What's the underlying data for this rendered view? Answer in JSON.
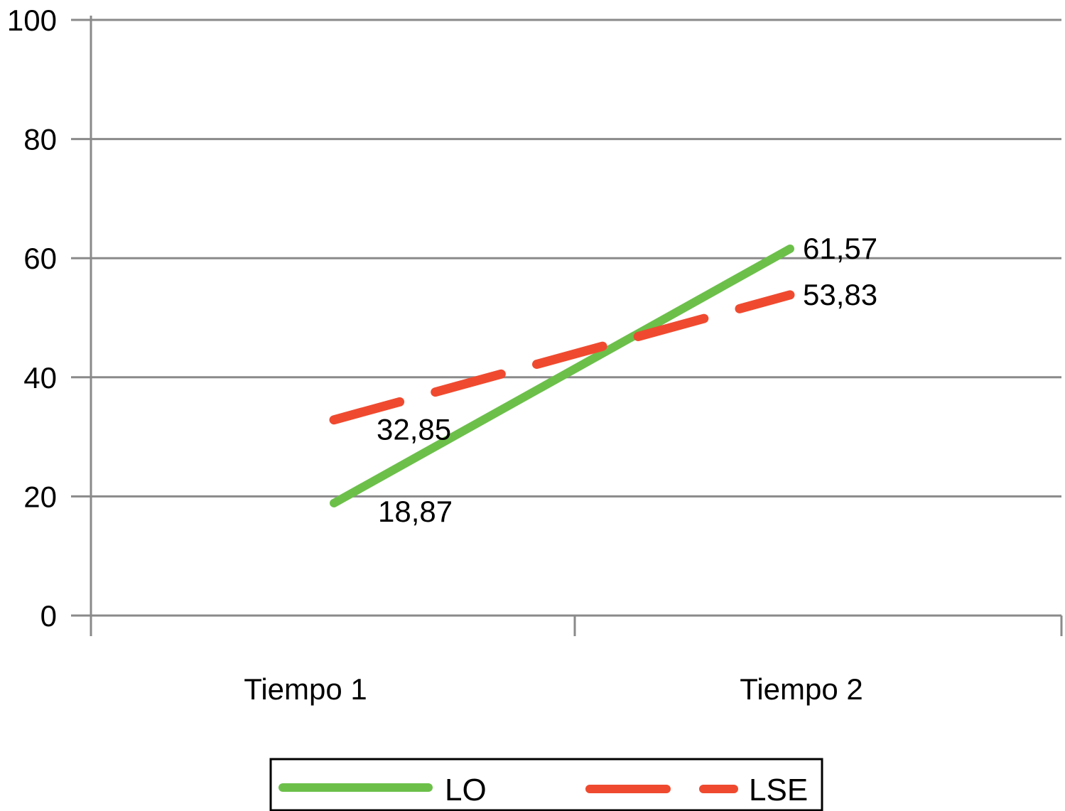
{
  "chart_data": {
    "type": "line",
    "categories": [
      "Tiempo 1",
      "Tiempo 2"
    ],
    "ylim": [
      0,
      100
    ],
    "yticks": [
      0,
      20,
      40,
      60,
      80,
      100
    ],
    "grid": true,
    "legend_position": "bottom",
    "series": [
      {
        "name": "LO",
        "values": [
          18.87,
          61.57
        ],
        "labels": [
          "18,87",
          "61,57"
        ],
        "color": "#6cc04a",
        "style": "solid"
      },
      {
        "name": "LSE",
        "values": [
          32.85,
          53.83
        ],
        "labels": [
          "32,85",
          "53,83"
        ],
        "color": "#ef4a2f",
        "style": "dashed"
      }
    ]
  }
}
